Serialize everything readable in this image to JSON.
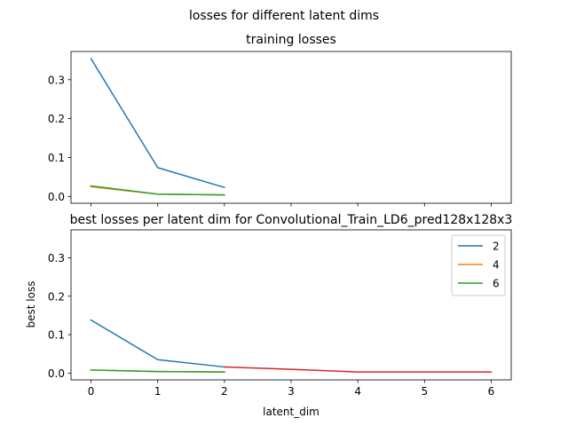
{
  "figure": {
    "suptitle": "losses for different latent dims"
  },
  "chart_data": [
    {
      "type": "line",
      "title": "training losses",
      "xlabel": "",
      "ylabel": "",
      "xlim": [
        -0.3,
        6.3
      ],
      "ylim": [
        -0.0175,
        0.3725
      ],
      "xticks": [
        0,
        1,
        2,
        3,
        4,
        5,
        6
      ],
      "xtick_labels_visible": false,
      "yticks": [
        0.0,
        0.1,
        0.2,
        0.3
      ],
      "ytick_labels": [
        "0.0",
        "0.1",
        "0.2",
        "0.3"
      ],
      "grid": false,
      "series": [
        {
          "color": "#1f77b4",
          "x": [
            0,
            1,
            2
          ],
          "y": [
            0.354,
            0.074,
            0.023
          ]
        },
        {
          "color": "#ff7f0e",
          "x": [
            0,
            1,
            2
          ],
          "y": [
            0.025,
            0.006,
            0.004
          ]
        },
        {
          "color": "#2ca02c",
          "x": [
            0,
            1,
            2
          ],
          "y": [
            0.027,
            0.006,
            0.004
          ]
        }
      ]
    },
    {
      "type": "line",
      "title": "best losses per latent dim for Convolutional_Train_LD6_pred128x128x3",
      "xlabel": "latent_dim",
      "ylabel": "best loss",
      "xlim": [
        -0.3,
        6.3
      ],
      "ylim": [
        -0.0175,
        0.3725
      ],
      "xticks": [
        0,
        1,
        2,
        3,
        4,
        5,
        6
      ],
      "xtick_labels": [
        "0",
        "1",
        "2",
        "3",
        "4",
        "5",
        "6"
      ],
      "yticks": [
        0.0,
        0.1,
        0.2,
        0.3
      ],
      "ytick_labels": [
        "0.0",
        "0.1",
        "0.2",
        "0.3"
      ],
      "grid": false,
      "legend": {
        "placement": "upper right",
        "entries": [
          "2",
          "4",
          "6"
        ]
      },
      "series": [
        {
          "name": "2",
          "color": "#1f77b4",
          "x": [
            0,
            1,
            2
          ],
          "y": [
            0.138,
            0.035,
            0.016
          ]
        },
        {
          "name": "4",
          "color": "#ff7f0e",
          "x": [
            0,
            1,
            2
          ],
          "y": [
            0.008,
            0.004,
            0.003
          ]
        },
        {
          "name": "6",
          "color": "#2ca02c",
          "x": [
            0,
            1,
            2
          ],
          "y": [
            0.008,
            0.004,
            0.003
          ]
        },
        {
          "color": "#d62728",
          "x": [
            2,
            3,
            4,
            5,
            6
          ],
          "y": [
            0.016,
            0.01,
            0.003,
            0.003,
            0.003
          ]
        }
      ]
    }
  ]
}
